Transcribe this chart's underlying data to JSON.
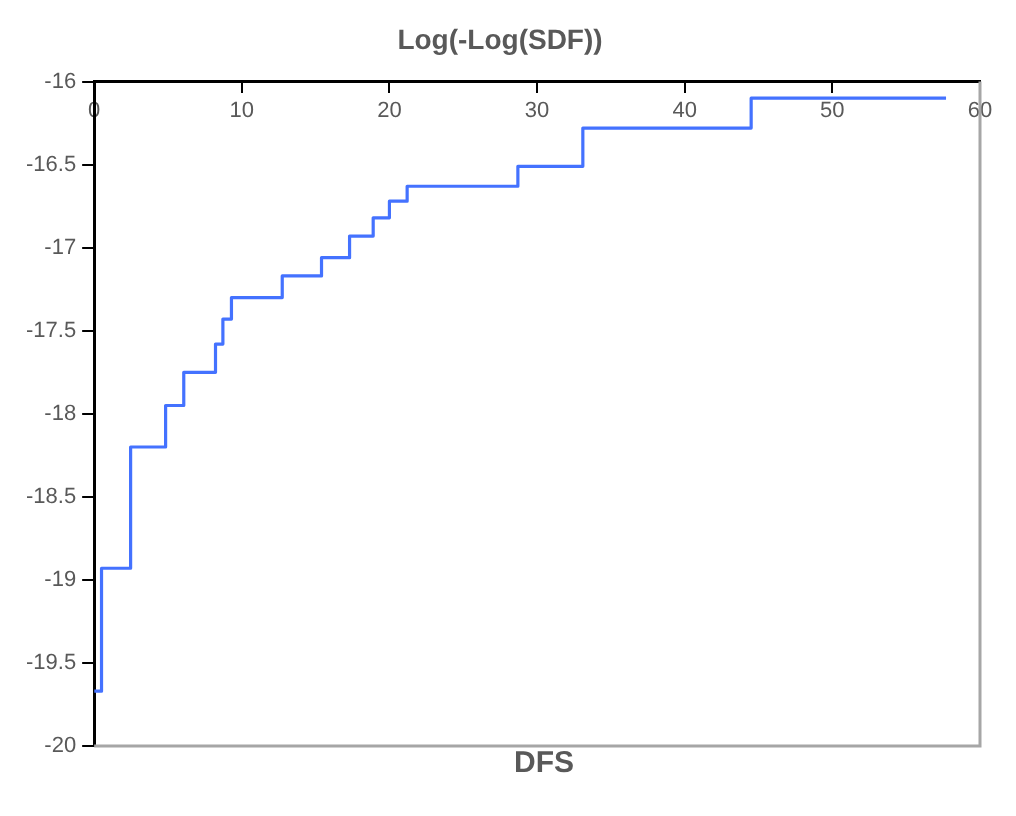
{
  "chart_data": {
    "type": "step",
    "title": "Log(-Log(SDF))",
    "xlabel": "DFS",
    "series": [
      {
        "color": "#4472ff",
        "x": [
          0,
          0.5,
          2.47,
          4.84,
          6.07,
          8.22,
          8.72,
          9.3,
          12.74,
          15.4,
          17.3,
          18.9,
          20.0,
          21.2,
          28.7,
          33.1,
          44.5,
          57.7
        ],
        "values": [
          -19.67,
          -18.93,
          -18.2,
          -17.95,
          -17.75,
          -17.58,
          -17.43,
          -17.3,
          -17.17,
          -17.06,
          -16.93,
          -16.82,
          -16.72,
          -16.63,
          -16.51,
          -16.28,
          -16.1,
          -16.1
        ]
      }
    ],
    "xlim": [
      0,
      60
    ],
    "xticks": [
      0,
      10,
      20,
      30,
      40,
      50,
      60
    ],
    "ylim": [
      -20,
      -16
    ],
    "yticks": [
      -20,
      -19.5,
      -19,
      -18.5,
      -18,
      -17.5,
      -17,
      -16.5,
      -16
    ],
    "grid": false,
    "legend": false,
    "marker": "none",
    "line_style": "solid"
  }
}
